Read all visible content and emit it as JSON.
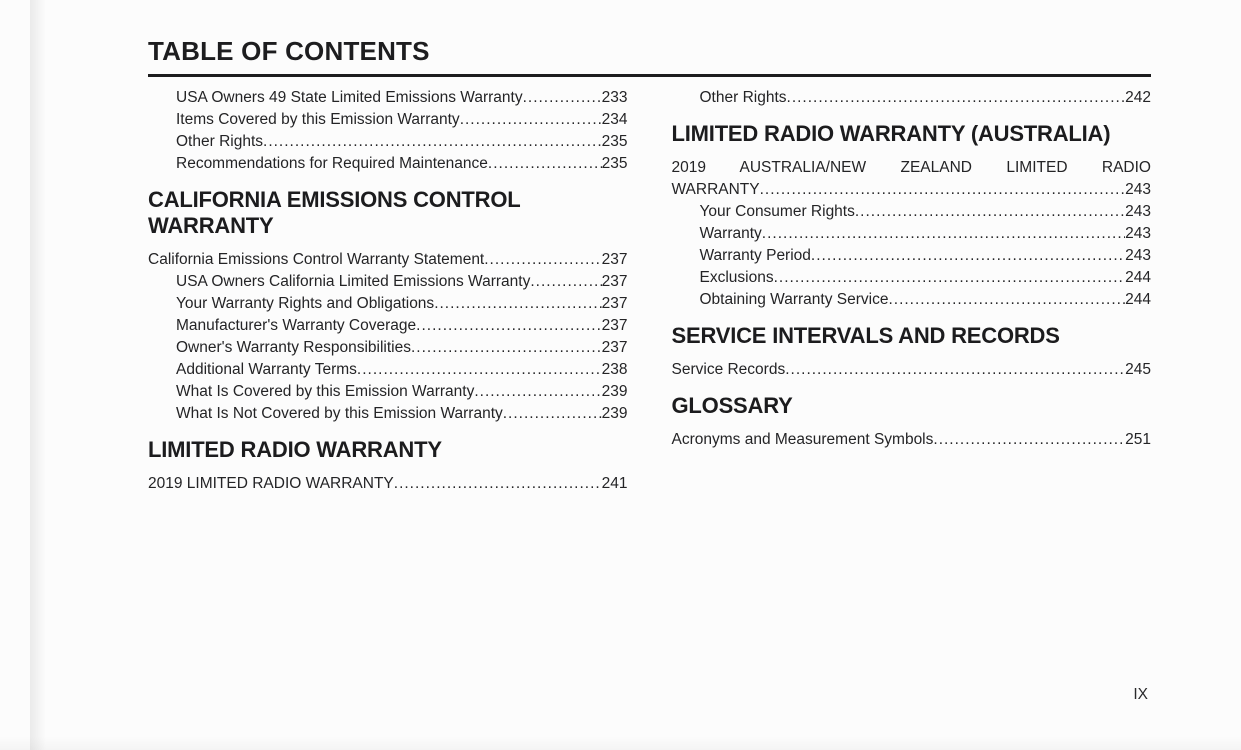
{
  "page": {
    "title": "TABLE OF CONTENTS",
    "page_number": "IX"
  },
  "colors": {
    "ink": "#232325",
    "heading_ink": "#1c1c1e",
    "paper": "#fcfcfc",
    "divider": "#1c1c1e"
  },
  "columns": {
    "left": [
      {
        "type": "entry",
        "indent": 1,
        "label": "USA Owners 49 State Limited Emissions Warranty",
        "page": "233"
      },
      {
        "type": "entry",
        "indent": 1,
        "label": "Items Covered by this Emission Warranty",
        "page": "234"
      },
      {
        "type": "entry",
        "indent": 1,
        "label": "Other Rights",
        "page": "235"
      },
      {
        "type": "entry",
        "indent": 1,
        "label": "Recommendations for Required Maintenance",
        "page": "235"
      },
      {
        "type": "heading",
        "label": "CALIFORNIA EMISSIONS CONTROL WARRANTY"
      },
      {
        "type": "entry",
        "indent": 0,
        "label": "California Emissions Control Warranty Statement",
        "page": "237"
      },
      {
        "type": "entry",
        "indent": 1,
        "label": "USA Owners California Limited Emissions Warranty",
        "page": "237"
      },
      {
        "type": "entry",
        "indent": 1,
        "label": "Your Warranty Rights and Obligations",
        "page": "237"
      },
      {
        "type": "entry",
        "indent": 1,
        "label": "Manufacturer's Warranty Coverage",
        "page": "237"
      },
      {
        "type": "entry",
        "indent": 1,
        "label": "Owner's Warranty Responsibilities",
        "page": "237"
      },
      {
        "type": "entry",
        "indent": 1,
        "label": "Additional Warranty Terms",
        "page": "238"
      },
      {
        "type": "entry",
        "indent": 1,
        "label": "What Is Covered by this Emission Warranty",
        "page": "239"
      },
      {
        "type": "entry",
        "indent": 1,
        "label": "What Is Not Covered by this Emission Warranty",
        "page": "239"
      },
      {
        "type": "heading",
        "label": "LIMITED RADIO WARRANTY"
      },
      {
        "type": "entry",
        "indent": 0,
        "label": "2019 LIMITED RADIO WARRANTY",
        "page": "241"
      }
    ],
    "right": [
      {
        "type": "entry",
        "indent": 1,
        "label": "Other Rights",
        "page": "242"
      },
      {
        "type": "heading",
        "label": "LIMITED RADIO WARRANTY (AUSTRALIA)"
      },
      {
        "type": "entry_wrap",
        "indent": 0,
        "line1": "2019 AUSTRALIA/NEW ZEALAND LIMITED RADIO",
        "label": "WARRANTY",
        "page": "243"
      },
      {
        "type": "entry",
        "indent": 1,
        "label": "Your Consumer Rights",
        "page": "243"
      },
      {
        "type": "entry",
        "indent": 1,
        "label": "Warranty",
        "page": "243"
      },
      {
        "type": "entry",
        "indent": 1,
        "label": "Warranty Period",
        "page": "243"
      },
      {
        "type": "entry",
        "indent": 1,
        "label": "Exclusions",
        "page": "244"
      },
      {
        "type": "entry",
        "indent": 1,
        "label": "Obtaining Warranty Service",
        "page": "244"
      },
      {
        "type": "heading",
        "label": "SERVICE INTERVALS AND RECORDS"
      },
      {
        "type": "entry",
        "indent": 0,
        "label": "Service Records",
        "page": "245"
      },
      {
        "type": "heading",
        "label": "GLOSSARY"
      },
      {
        "type": "entry",
        "indent": 0,
        "label": "Acronyms and Measurement Symbols",
        "page": "251"
      }
    ]
  }
}
